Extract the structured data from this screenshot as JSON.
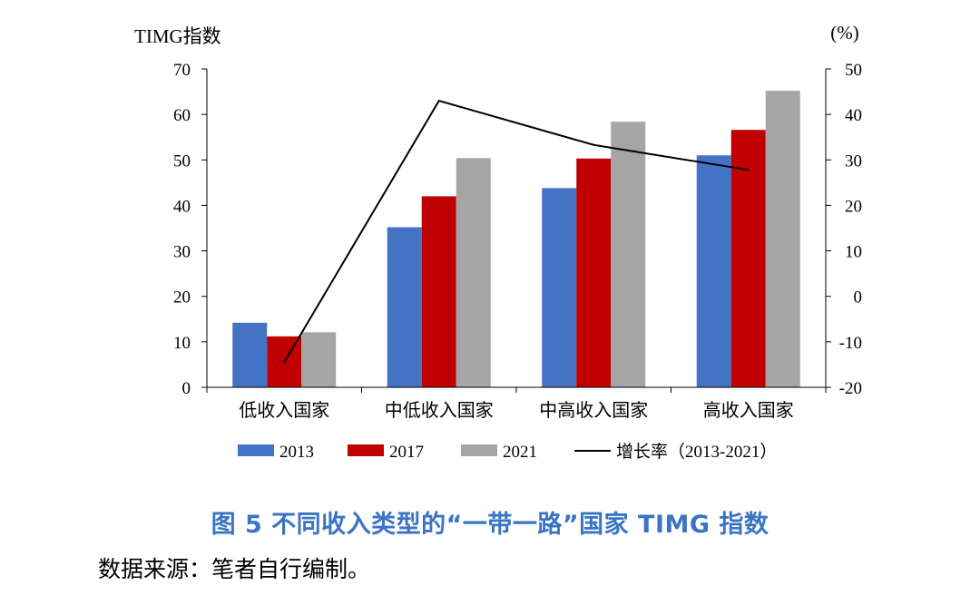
{
  "chart_data": {
    "type": "bar",
    "y_left_label": "TIMG指数",
    "y_right_label": "(%)",
    "categories": [
      "低收入国家",
      "中低收入国家",
      "中高收入国家",
      "高收入国家"
    ],
    "ylim_left": [
      0,
      70
    ],
    "yticks_left": [
      0,
      10,
      20,
      30,
      40,
      50,
      60,
      70
    ],
    "ylim_right": [
      -20,
      50
    ],
    "yticks_right": [
      -20,
      -10,
      0,
      10,
      20,
      30,
      40,
      50
    ],
    "series": [
      {
        "name": "2013",
        "color": "#4472c4",
        "values": [
          14.2,
          35.2,
          43.8,
          51.0
        ]
      },
      {
        "name": "2017",
        "color": "#c00000",
        "values": [
          11.2,
          42.0,
          50.3,
          56.6
        ]
      },
      {
        "name": "2021",
        "color": "#a5a5a5",
        "values": [
          12.1,
          50.4,
          58.4,
          65.2
        ]
      }
    ],
    "line": {
      "name": "增长率（2013-2021）",
      "color": "#000000",
      "axis": "right",
      "values": [
        -14.5,
        43.0,
        33.3,
        27.8
      ]
    },
    "grid": false,
    "legend_position": "bottom"
  },
  "caption": "图 5  不同收入类型的“一带一路”国家 TIMG 指数",
  "source": "数据来源：笔者自行编制。"
}
